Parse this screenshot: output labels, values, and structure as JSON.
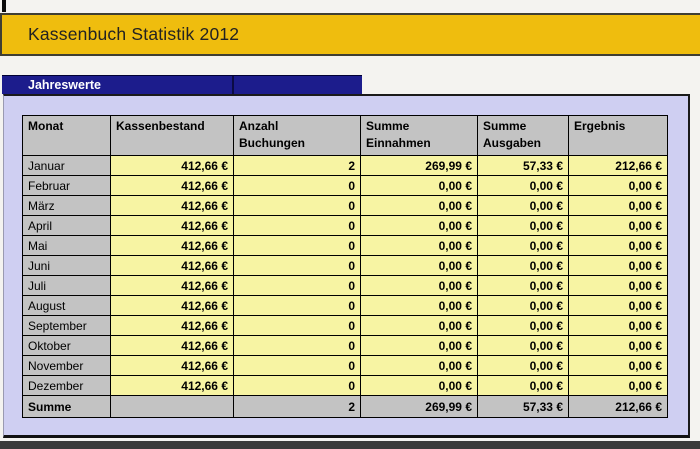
{
  "banner": {
    "title": "Kassenbuch Statistik 2012"
  },
  "section": {
    "label": "Jahreswerte"
  },
  "table": {
    "headers": [
      "Monat",
      "Kassenbestand",
      "Anzahl\nBuchungen",
      "Summe\nEinnahmen",
      "Summe\nAusgaben",
      "Ergebnis"
    ],
    "rows": [
      {
        "monat": "Januar",
        "kassenbestand": "412,66 €",
        "anzahl": "2",
        "einnahmen": "269,99 €",
        "ausgaben": "57,33 €",
        "ergebnis": "212,66 €"
      },
      {
        "monat": "Februar",
        "kassenbestand": "412,66 €",
        "anzahl": "0",
        "einnahmen": "0,00 €",
        "ausgaben": "0,00 €",
        "ergebnis": "0,00 €"
      },
      {
        "monat": "März",
        "kassenbestand": "412,66 €",
        "anzahl": "0",
        "einnahmen": "0,00 €",
        "ausgaben": "0,00 €",
        "ergebnis": "0,00 €"
      },
      {
        "monat": "April",
        "kassenbestand": "412,66 €",
        "anzahl": "0",
        "einnahmen": "0,00 €",
        "ausgaben": "0,00 €",
        "ergebnis": "0,00 €"
      },
      {
        "monat": "Mai",
        "kassenbestand": "412,66 €",
        "anzahl": "0",
        "einnahmen": "0,00 €",
        "ausgaben": "0,00 €",
        "ergebnis": "0,00 €"
      },
      {
        "monat": "Juni",
        "kassenbestand": "412,66 €",
        "anzahl": "0",
        "einnahmen": "0,00 €",
        "ausgaben": "0,00 €",
        "ergebnis": "0,00 €"
      },
      {
        "monat": "Juli",
        "kassenbestand": "412,66 €",
        "anzahl": "0",
        "einnahmen": "0,00 €",
        "ausgaben": "0,00 €",
        "ergebnis": "0,00 €"
      },
      {
        "monat": "August",
        "kassenbestand": "412,66 €",
        "anzahl": "0",
        "einnahmen": "0,00 €",
        "ausgaben": "0,00 €",
        "ergebnis": "0,00 €"
      },
      {
        "monat": "September",
        "kassenbestand": "412,66 €",
        "anzahl": "0",
        "einnahmen": "0,00 €",
        "ausgaben": "0,00 €",
        "ergebnis": "0,00 €"
      },
      {
        "monat": "Oktober",
        "kassenbestand": "412,66 €",
        "anzahl": "0",
        "einnahmen": "0,00 €",
        "ausgaben": "0,00 €",
        "ergebnis": "0,00 €"
      },
      {
        "monat": "November",
        "kassenbestand": "412,66 €",
        "anzahl": "0",
        "einnahmen": "0,00 €",
        "ausgaben": "0,00 €",
        "ergebnis": "0,00 €"
      },
      {
        "monat": "Dezember",
        "kassenbestand": "412,66 €",
        "anzahl": "0",
        "einnahmen": "0,00 €",
        "ausgaben": "0,00 €",
        "ergebnis": "0,00 €"
      }
    ],
    "summe": {
      "label": "Summe",
      "kassenbestand": "",
      "anzahl": "2",
      "einnahmen": "269,99 €",
      "ausgaben": "57,33 €",
      "ergebnis": "212,66 €"
    }
  },
  "colors": {
    "banner_yellow": "#EFBD0E",
    "section_navy": "#1C1C8C",
    "panel_lavender": "#CFCFF2",
    "header_gray": "#C3C3C3",
    "cell_yellow": "#F7F4A3"
  }
}
